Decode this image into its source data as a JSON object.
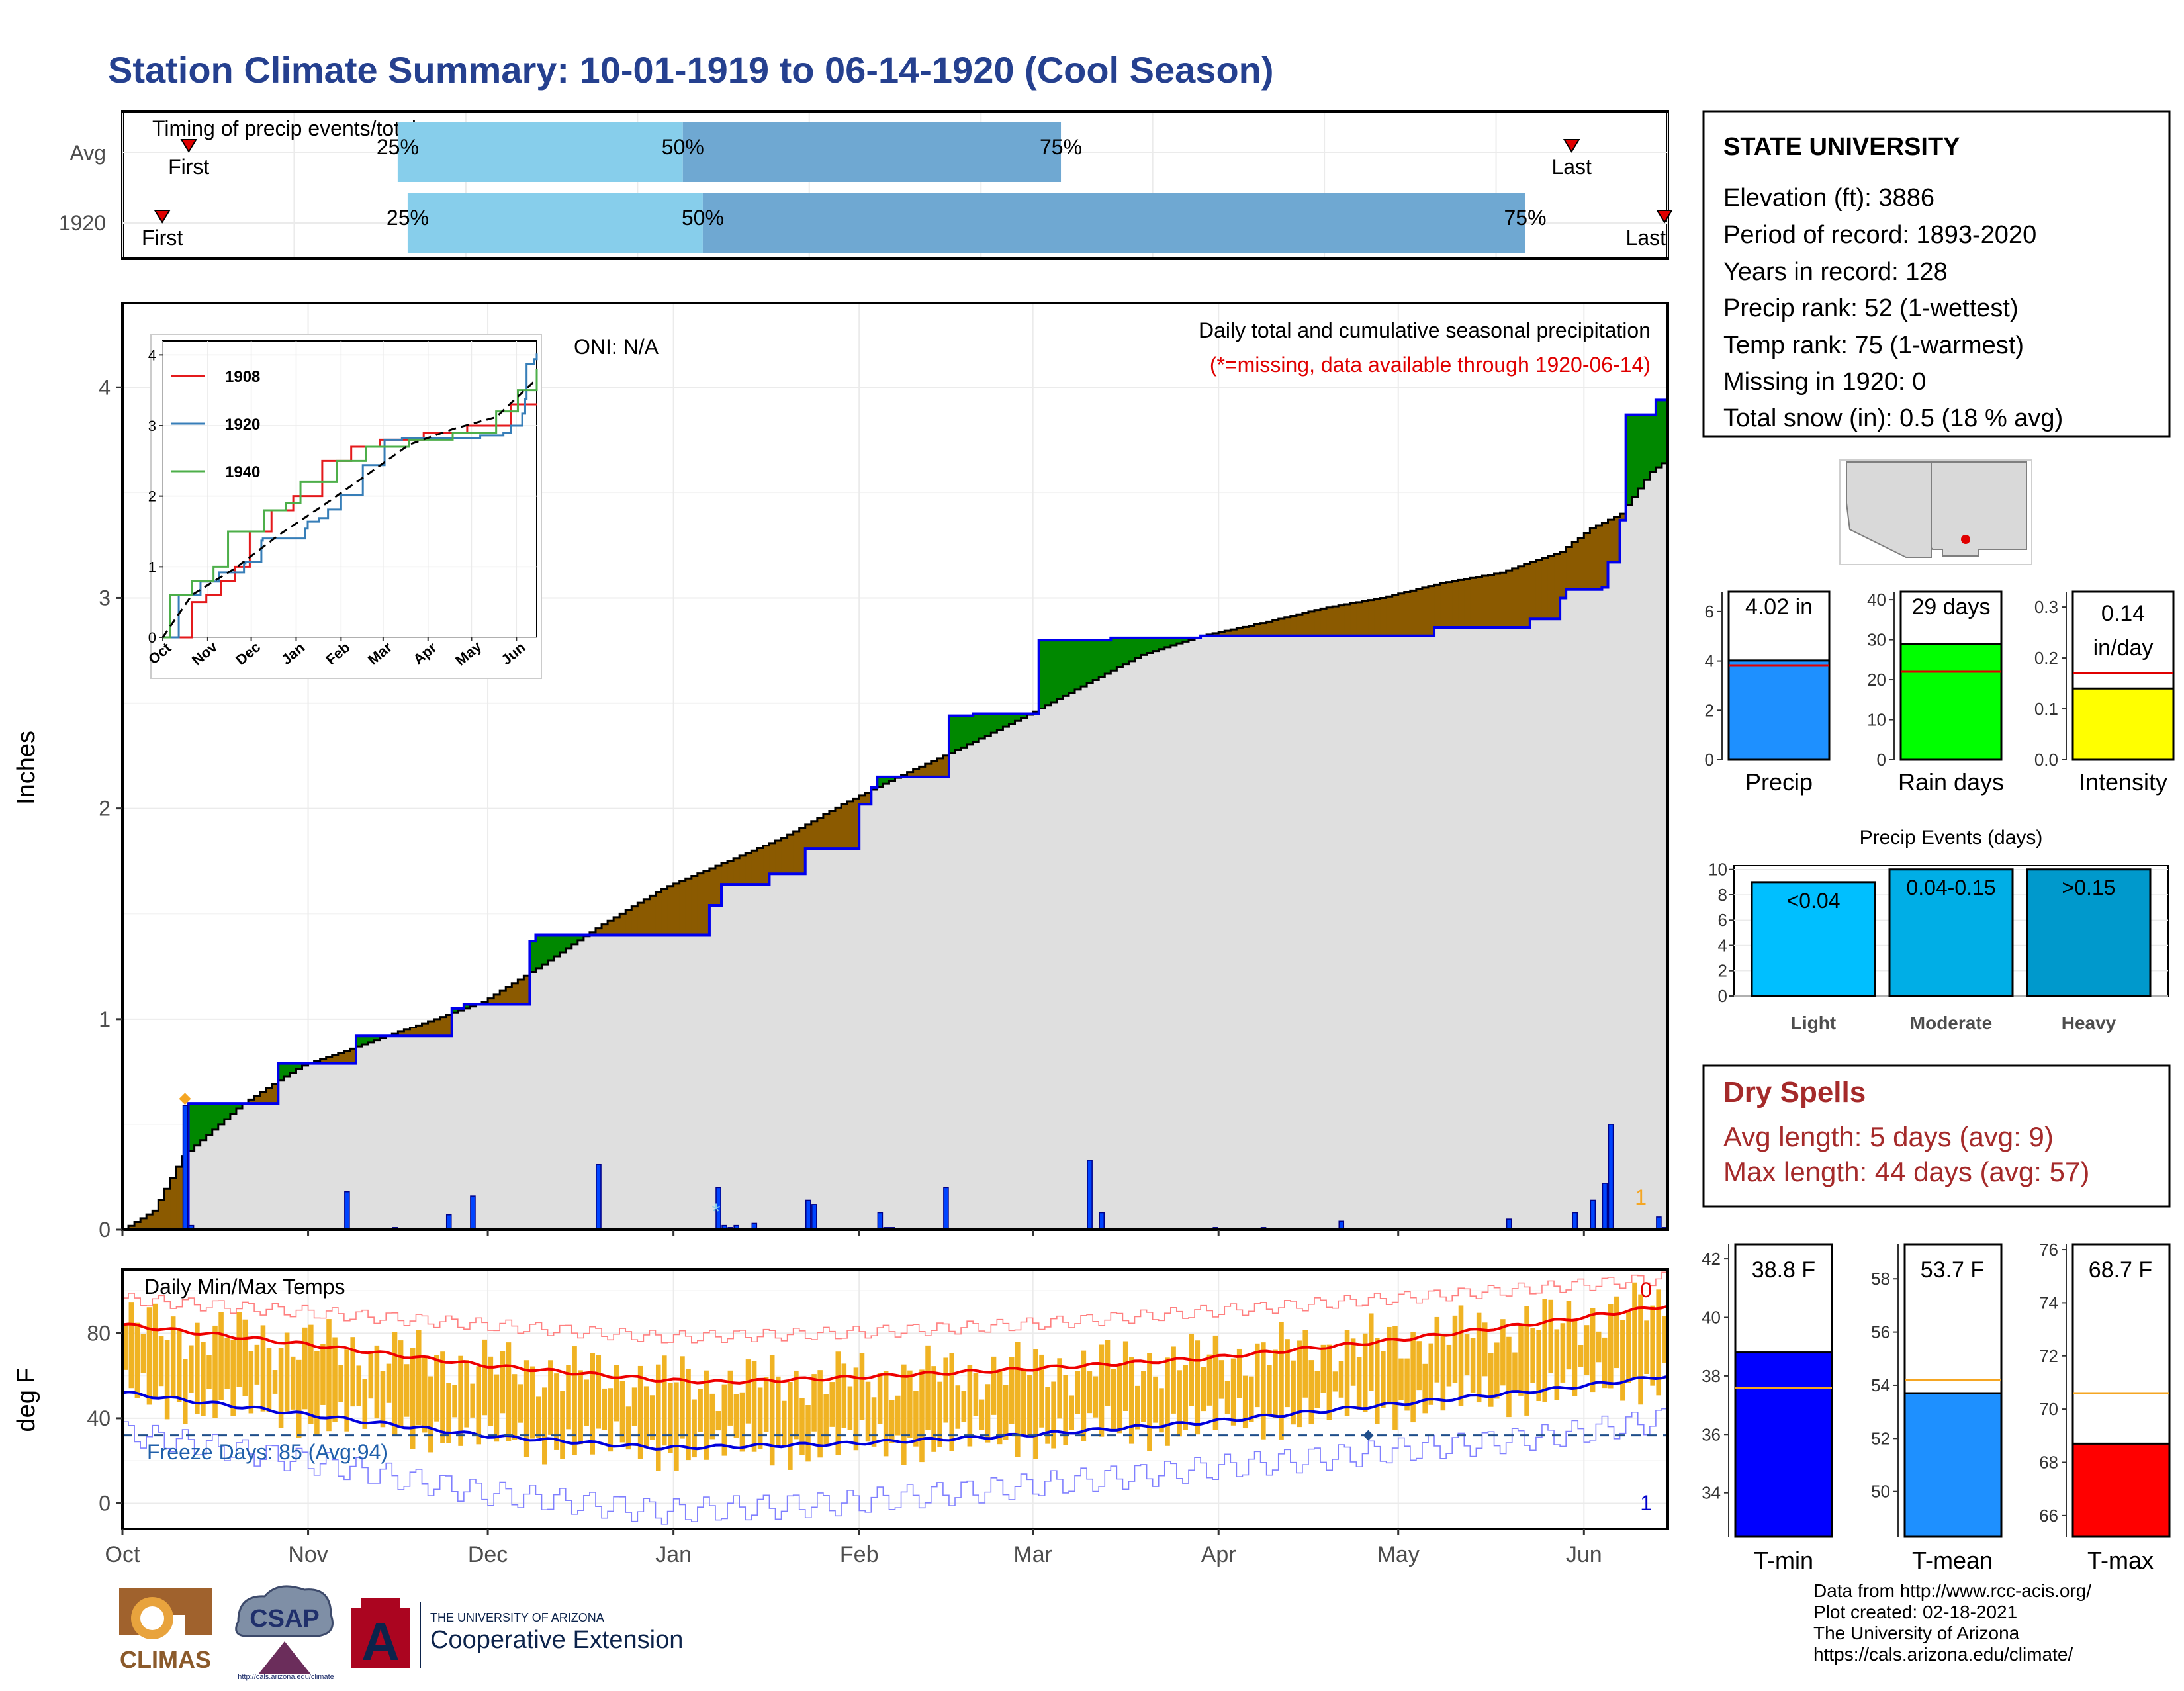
{
  "title": "Station Climate Summary: 10-01-1919 to 06-14-1920 (Cool Season)",
  "timing": {
    "label": "Timing of precip events/totals",
    "rows": [
      {
        "name": "Avg",
        "first": "First",
        "last": "Last",
        "p25": "25%",
        "p50": "50%",
        "p75": "75%"
      },
      {
        "name": "1920",
        "first": "First",
        "last": "Last",
        "p25": "25%",
        "p50": "50%",
        "p75": "75%"
      }
    ]
  },
  "station": {
    "name": "STATE UNIVERSITY",
    "lines": [
      "Elevation (ft): 3886",
      "Period of record: 1893-2020",
      "Years in record: 128",
      "Precip rank: 52 (1-wettest)",
      "Temp rank: 75 (1-warmest)",
      "Missing in 1920: 0",
      "Total snow (in): 0.5 (18 % avg)"
    ]
  },
  "precip_panel": {
    "ylabel": "Inches",
    "oni": "ONI: N/A",
    "caption": "Daily total and cumulative seasonal precipitation",
    "missing_note": "(*=missing, data available through 1920-06-14)",
    "corner_count": "1",
    "yticks": [
      "0",
      "1",
      "2",
      "3",
      "4"
    ]
  },
  "inset": {
    "legend": [
      {
        "name": "1908",
        "color": "#e41a1c"
      },
      {
        "name": "1920",
        "color": "#377eb8"
      },
      {
        "name": "1940",
        "color": "#4daf4a"
      }
    ],
    "yticks": [
      "0",
      "1",
      "2",
      "3",
      "4"
    ],
    "xticks": [
      "Oct",
      "Nov",
      "Dec",
      "Jan",
      "Feb",
      "Mar",
      "Apr",
      "May",
      "Jun"
    ]
  },
  "temp_panel": {
    "ylabel": "deg F",
    "label": "Daily Min/Max Temps",
    "freeze": "Freeze Days: 85 (Avg:94)",
    "top_count": "0",
    "bottom_count": "1",
    "yticks": [
      "0",
      "40",
      "80"
    ]
  },
  "months": [
    "Oct",
    "Nov",
    "Dec",
    "Jan",
    "Feb",
    "Mar",
    "Apr",
    "May",
    "Jun"
  ],
  "summary_bars": {
    "precip": {
      "value_label": "4.02 in",
      "label": "Precip",
      "yticks": [
        "0",
        "2",
        "4",
        "6"
      ]
    },
    "rain_days": {
      "value_label": "29 days",
      "label": "Rain days",
      "yticks": [
        "0",
        "10",
        "20",
        "30",
        "40"
      ]
    },
    "intensity": {
      "value_label": "0.14",
      "value_unit": "in/day",
      "label": "Intensity",
      "yticks": [
        "0.0",
        "0.1",
        "0.2",
        "0.3"
      ]
    }
  },
  "precip_events": {
    "title": "Precip Events (days)",
    "yticks": [
      "0",
      "2",
      "4",
      "6",
      "8",
      "10"
    ],
    "bars": [
      {
        "label": "Light",
        "range": "<0.04"
      },
      {
        "label": "Moderate",
        "range": "0.04-0.15"
      },
      {
        "label": "Heavy",
        "range": ">0.15"
      }
    ]
  },
  "dry_spells": {
    "title": "Dry Spells",
    "avg": "Avg length: 5 days (avg: 9)",
    "max": "Max length: 44 days (avg: 57)"
  },
  "temp_bars": {
    "tmin": {
      "value_label": "38.8 F",
      "label": "T-min",
      "yticks": [
        "34",
        "36",
        "38",
        "40",
        "42"
      ]
    },
    "tmean": {
      "value_label": "53.7 F",
      "label": "T-mean",
      "yticks": [
        "50",
        "52",
        "54",
        "56",
        "58"
      ]
    },
    "tmax": {
      "value_label": "68.7 F",
      "label": "T-max",
      "yticks": [
        "66",
        "68",
        "70",
        "72",
        "74",
        "76"
      ]
    }
  },
  "logos": {
    "climas": "CLIMAS",
    "csap": "CSAP",
    "csap_url": "http://cals.arizona.edu/climate",
    "ua_top": "THE UNIVERSITY OF ARIZONA",
    "ua_bottom": "Cooperative Extension",
    "ua_mark": "A"
  },
  "footer": [
    "Data from http://www.rcc-acis.org/",
    "Plot created: 02-18-2021",
    "The University of Arizona",
    "https://cals.arizona.edu/climate/"
  ],
  "chart_data": [
    {
      "type": "bar",
      "name": "timing",
      "categories": [
        "Avg",
        "1920"
      ],
      "first_day": [
        20,
        12
      ],
      "p25_day": [
        83,
        86
      ],
      "p50_day": [
        169,
        175
      ],
      "p75_day": [
        283,
        423
      ],
      "last_day": [
        437,
        465
      ],
      "xlim": [
        0,
        466
      ]
    },
    {
      "type": "area",
      "name": "cumulative_precip",
      "x_unit": "days since Oct 1",
      "xlim": [
        0,
        258
      ],
      "ylim": [
        0,
        4.4
      ],
      "series": [
        {
          "name": "1920",
          "x": [
            0,
            10,
            11,
            25,
            26,
            38,
            39,
            49,
            50,
            54,
            55,
            56,
            57,
            58,
            68,
            69,
            97,
            98,
            99,
            100,
            101,
            102,
            107,
            108,
            113,
            114,
            122,
            123,
            125,
            126,
            137,
            138,
            141,
            142,
            152,
            153,
            164,
            165,
            169,
            179,
            180,
            191,
            203,
            218,
            219,
            234,
            235,
            239,
            240,
            241,
            242,
            246,
            247,
            248,
            250,
            251,
            255,
            256,
            258
          ],
          "values": [
            0,
            0,
            0.6,
            0.6,
            0.79,
            0.79,
            0.92,
            0.92,
            0.92,
            0.92,
            1.05,
            1.05,
            1.07,
            1.07,
            1.37,
            1.4,
            1.4,
            1.54,
            1.54,
            1.64,
            1.64,
            1.64,
            1.64,
            1.69,
            1.69,
            1.81,
            1.81,
            2.02,
            2.1,
            2.15,
            2.15,
            2.44,
            2.44,
            2.45,
            2.45,
            2.8,
            2.8,
            2.81,
            2.81,
            2.81,
            2.82,
            2.82,
            2.82,
            2.82,
            2.86,
            2.86,
            2.9,
            2.9,
            3,
            3.04,
            3.04,
            3.04,
            3.05,
            3.17,
            3.37,
            3.87,
            3.87,
            3.94,
            4.02
          ]
        },
        {
          "name": "Average",
          "x": [
            0,
            5,
            10,
            20,
            30,
            40,
            50,
            60,
            70,
            80,
            90,
            100,
            110,
            120,
            130,
            140,
            150,
            160,
            170,
            180,
            190,
            200,
            210,
            220,
            230,
            240,
            245,
            250,
            255,
            258
          ],
          "values": [
            0,
            0.09,
            0.35,
            0.6,
            0.78,
            0.88,
            0.98,
            1.08,
            1.26,
            1.45,
            1.62,
            1.74,
            1.86,
            2.02,
            2.16,
            2.29,
            2.43,
            2.58,
            2.73,
            2.82,
            2.88,
            2.95,
            3,
            3.07,
            3.12,
            3.22,
            3.33,
            3.4,
            3.6,
            3.66
          ]
        }
      ]
    },
    {
      "type": "bar",
      "name": "daily_precip",
      "x_unit": "days since Oct 1",
      "x": [
        10,
        11,
        37,
        45,
        54,
        58,
        79,
        99,
        100,
        101,
        102,
        105,
        114,
        115,
        126,
        127,
        128,
        137,
        161,
        163,
        182,
        190,
        203,
        231,
        242,
        245,
        247,
        248,
        256,
        257
      ],
      "values": [
        0.59,
        0.02,
        0.18,
        0.01,
        0.07,
        0.16,
        0.31,
        0.2,
        0.02,
        0.01,
        0.02,
        0.03,
        0.14,
        0.12,
        0.08,
        0.01,
        0.01,
        0.2,
        0.33,
        0.08,
        0.01,
        0.01,
        0.04,
        0.05,
        0.08,
        0.14,
        0.22,
        0.5,
        0.06,
        0.01
      ]
    },
    {
      "type": "line",
      "name": "inset_cumulative",
      "x_unit": "days since Oct 1",
      "xlim": [
        0,
        258
      ],
      "ylim": [
        0,
        4
      ],
      "series": [
        {
          "name": "1908",
          "x": [
            0,
            15,
            20,
            30,
            40,
            50,
            60,
            75,
            90,
            110,
            130,
            150,
            180,
            210,
            240,
            258
          ],
          "values": [
            0,
            0,
            0.5,
            0.6,
            0.8,
            1.0,
            1.5,
            1.8,
            2.0,
            2.5,
            2.7,
            2.8,
            2.9,
            3.0,
            3.3,
            3.3
          ]
        },
        {
          "name": "1920",
          "x": [
            0,
            10,
            11,
            25,
            26,
            38,
            39,
            56,
            57,
            68,
            69,
            98,
            100,
            102,
            108,
            114,
            123,
            138,
            153,
            165,
            219,
            235,
            240,
            248,
            250,
            251,
            256,
            258
          ],
          "values": [
            0,
            0,
            0.6,
            0.6,
            0.79,
            0.79,
            0.92,
            1.05,
            1.07,
            1.37,
            1.4,
            1.54,
            1.64,
            1.64,
            1.69,
            1.81,
            2.02,
            2.44,
            2.8,
            2.82,
            2.86,
            2.9,
            3.0,
            3.17,
            3.37,
            3.87,
            3.94,
            4.02
          ]
        },
        {
          "name": "1940",
          "x": [
            0,
            5,
            20,
            35,
            45,
            60,
            70,
            85,
            95,
            120,
            140,
            170,
            200,
            230,
            245,
            258
          ],
          "values": [
            0,
            0.6,
            0.8,
            1.0,
            1.5,
            1.5,
            1.8,
            1.9,
            2.2,
            2.5,
            2.7,
            2.8,
            2.9,
            3.2,
            3.5,
            3.8
          ]
        },
        {
          "name": "Average",
          "x": [
            0,
            20,
            50,
            80,
            110,
            140,
            170,
            200,
            230,
            258
          ],
          "values": [
            0,
            0.6,
            0.98,
            1.45,
            1.86,
            2.29,
            2.73,
            2.95,
            3.12,
            3.66
          ]
        }
      ]
    },
    {
      "type": "line",
      "name": "temperatures",
      "x_unit": "days since Oct 1",
      "xlim": [
        0,
        258
      ],
      "ylim": [
        -12,
        110
      ],
      "series": [
        {
          "name": "Avg Tmax",
          "x": [
            0,
            30,
            60,
            90,
            100,
            120,
            150,
            180,
            210,
            240,
            258
          ],
          "values": [
            84,
            75,
            65,
            58,
            57,
            59,
            63,
            68,
            76,
            86,
            93
          ]
        },
        {
          "name": "Avg Tmin",
          "x": [
            0,
            30,
            60,
            90,
            120,
            150,
            180,
            210,
            240,
            258
          ],
          "values": [
            52,
            42,
            32,
            26,
            28,
            32,
            38,
            46,
            54,
            60
          ]
        },
        {
          "name": "Record Tmax",
          "x": [
            0,
            30,
            60,
            90,
            120,
            150,
            180,
            210,
            240,
            258
          ],
          "values": [
            96,
            90,
            84,
            78,
            80,
            84,
            90,
            96,
            102,
            106
          ]
        },
        {
          "name": "Record Tmin",
          "x": [
            0,
            30,
            60,
            90,
            120,
            150,
            180,
            210,
            240,
            258
          ],
          "values": [
            33,
            20,
            5,
            -4,
            0,
            8,
            16,
            24,
            32,
            40
          ]
        }
      ],
      "freeze_line": 32
    },
    {
      "type": "bar",
      "name": "season_summary",
      "categories": [
        "Precip",
        "Rain days",
        "Intensity"
      ],
      "values": [
        4.02,
        29,
        0.14
      ],
      "averages": [
        3.8,
        22,
        0.17
      ],
      "ylims": [
        [
          0,
          6.8
        ],
        [
          0,
          42
        ],
        [
          0,
          0.33
        ]
      ]
    },
    {
      "type": "bar",
      "name": "precip_events",
      "categories": [
        "Light",
        "Moderate",
        "Heavy"
      ],
      "values": [
        9,
        10,
        10
      ],
      "ylim": [
        0,
        10.3
      ]
    },
    {
      "type": "bar",
      "name": "temp_summary",
      "categories": [
        "T-min",
        "T-mean",
        "T-max"
      ],
      "values": [
        38.8,
        53.7,
        68.7
      ],
      "averages": [
        37.6,
        54.2,
        70.6
      ],
      "ylims": [
        [
          32.5,
          42.5
        ],
        [
          48.3,
          59.3
        ],
        [
          65.2,
          76.2
        ]
      ]
    }
  ]
}
